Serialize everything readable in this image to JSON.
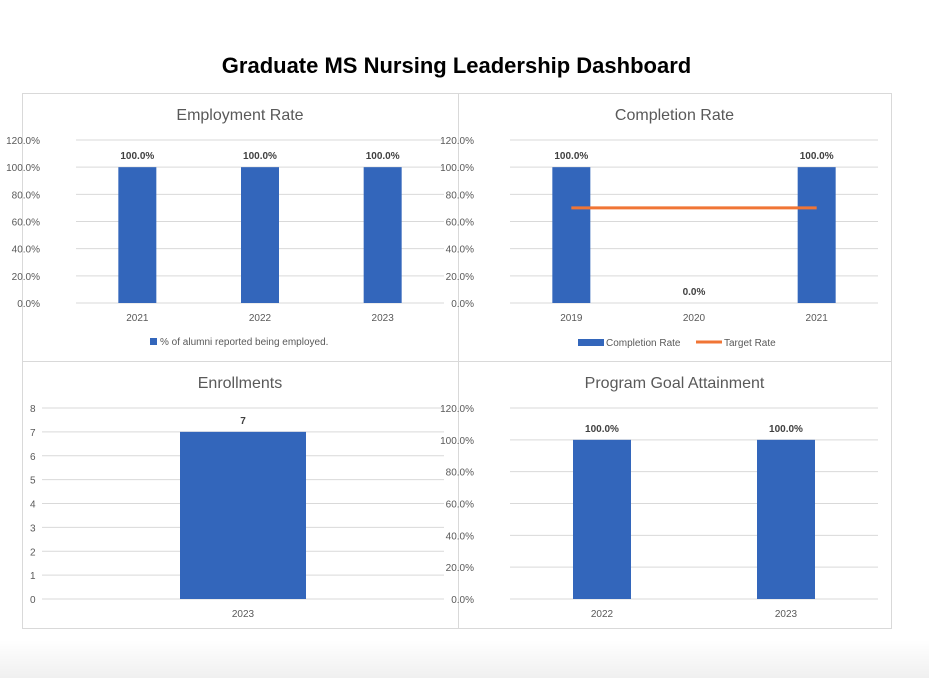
{
  "title": "Graduate MS Nursing Leadership Dashboard",
  "colors": {
    "bar": "#3366bb",
    "target": "#f07535",
    "grid": "#d9d9d9",
    "border": "#d9d9d9"
  },
  "chart_data": [
    {
      "id": "employment",
      "type": "bar",
      "title": "Employment Rate",
      "categories": [
        "2021",
        "2022",
        "2023"
      ],
      "series": [
        {
          "name": "% of alumni reported being employed.",
          "values": [
            100,
            100,
            100
          ]
        }
      ],
      "data_labels": [
        "100.0%",
        "100.0%",
        "100.0%"
      ],
      "yticks": [
        "0.0%",
        "20.0%",
        "40.0%",
        "60.0%",
        "80.0%",
        "100.0%",
        "120.0%"
      ],
      "ylim": [
        0,
        120
      ],
      "grid": true,
      "legend": "bottom"
    },
    {
      "id": "completion",
      "type": "bar",
      "title": "Completion Rate",
      "categories": [
        "2019",
        "2020",
        "2021"
      ],
      "series": [
        {
          "name": "Completion Rate",
          "values": [
            100,
            0,
            100
          ]
        },
        {
          "name": "Target Rate",
          "type": "line",
          "values": [
            70,
            70,
            70
          ]
        }
      ],
      "data_labels": [
        "100.0%",
        "0.0%",
        "100.0%"
      ],
      "yticks": [
        "0.0%",
        "20.0%",
        "40.0%",
        "60.0%",
        "80.0%",
        "100.0%",
        "120.0%"
      ],
      "ylim": [
        0,
        120
      ],
      "grid": true,
      "legend": "bottom"
    },
    {
      "id": "enrollments",
      "type": "bar",
      "title": "Enrollments",
      "categories": [
        "2023"
      ],
      "series": [
        {
          "values": [
            7
          ]
        }
      ],
      "data_labels": [
        "7"
      ],
      "yticks": [
        "0",
        "1",
        "2",
        "3",
        "4",
        "5",
        "6",
        "7",
        "8"
      ],
      "ylim": [
        0,
        8
      ],
      "grid": true
    },
    {
      "id": "goal",
      "type": "bar",
      "title": "Program Goal Attainment",
      "categories": [
        "2022",
        "2023"
      ],
      "series": [
        {
          "values": [
            100,
            100
          ]
        }
      ],
      "data_labels": [
        "100.0%",
        "100.0%"
      ],
      "yticks": [
        "0.0%",
        "20.0%",
        "40.0%",
        "60.0%",
        "80.0%",
        "100.0%",
        "120.0%"
      ],
      "ylim": [
        0,
        120
      ],
      "grid": true
    }
  ]
}
